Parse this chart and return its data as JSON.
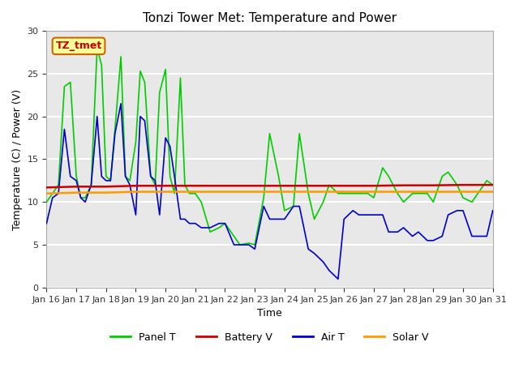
{
  "title": "Tonzi Tower Met: Temperature and Power",
  "xlabel": "Time",
  "ylabel": "Temperature (C) / Power (V)",
  "xlim": [
    0,
    15
  ],
  "ylim": [
    0,
    30
  ],
  "yticks": [
    0,
    5,
    10,
    15,
    20,
    25,
    30
  ],
  "xtick_labels": [
    "Jan 16",
    "Jan 17",
    "Jan 18",
    "Jan 19",
    "Jan 20",
    "Jan 21",
    "Jan 22",
    "Jan 23",
    "Jan 24",
    "Jan 25",
    "Jan 26",
    "Jan 27",
    "Jan 28",
    "Jan 29",
    "Jan 30",
    "Jan 31"
  ],
  "annotation_text": "TZ_tmet",
  "annotation_color": "#cc0000",
  "annotation_bg": "#ffff99",
  "bg_color": "#e8e8e8",
  "grid_color": "#ffffff",
  "legend_entries": [
    "Panel T",
    "Battery V",
    "Air T",
    "Solar V"
  ],
  "line_colors": {
    "panel_t": "#00cc00",
    "battery_v": "#cc0000",
    "air_t": "#0000cc",
    "solar_v": "#ff9900"
  },
  "panel_t_x": [
    0,
    0.2,
    0.4,
    0.6,
    0.8,
    1.0,
    1.15,
    1.3,
    1.5,
    1.7,
    1.85,
    2.0,
    2.15,
    2.3,
    2.5,
    2.65,
    2.8,
    3.0,
    3.15,
    3.3,
    3.5,
    3.65,
    3.8,
    4.0,
    4.15,
    4.3,
    4.5,
    4.65,
    4.8,
    5.0,
    5.2,
    5.5,
    5.8,
    6.0,
    6.3,
    6.5,
    6.8,
    7.0,
    7.3,
    7.5,
    7.8,
    8.0,
    8.3,
    8.5,
    8.8,
    9.0,
    9.3,
    9.5,
    9.8,
    10.0,
    10.3,
    10.5,
    10.8,
    11.0,
    11.3,
    11.5,
    11.8,
    12.0,
    12.3,
    12.5,
    12.8,
    13.0,
    13.3,
    13.5,
    13.8,
    14.0,
    14.3,
    14.5,
    14.8,
    15.0
  ],
  "panel_t_y": [
    10,
    11,
    12,
    23.5,
    24,
    13,
    10.5,
    10.5,
    12,
    28,
    26,
    13,
    12.5,
    18.5,
    27,
    13,
    12.5,
    17,
    25.3,
    24,
    13,
    12,
    22.8,
    25.5,
    13,
    11,
    24.5,
    12,
    11,
    11,
    10,
    6.5,
    7,
    7.5,
    6,
    5,
    5.2,
    5,
    10.5,
    18,
    13,
    9,
    9.5,
    18,
    11,
    8,
    10,
    12,
    11,
    11,
    11,
    11,
    11,
    10.5,
    14,
    13,
    11,
    10,
    11,
    11,
    11,
    10,
    13,
    13.5,
    12,
    10.5,
    10,
    11,
    12.5,
    12
  ],
  "battery_v_x": [
    0,
    1,
    2,
    3,
    4,
    5,
    6,
    7,
    8,
    9,
    10,
    11,
    12,
    13,
    14,
    15
  ],
  "battery_v_y": [
    11.7,
    11.8,
    11.8,
    11.9,
    11.9,
    11.9,
    11.9,
    11.9,
    11.9,
    11.9,
    11.9,
    11.9,
    11.95,
    11.95,
    12.0,
    12.0
  ],
  "air_t_x": [
    0,
    0.2,
    0.4,
    0.6,
    0.8,
    1.0,
    1.15,
    1.3,
    1.5,
    1.7,
    1.85,
    2.0,
    2.15,
    2.3,
    2.5,
    2.65,
    2.8,
    3.0,
    3.15,
    3.3,
    3.5,
    3.65,
    3.8,
    4.0,
    4.15,
    4.3,
    4.5,
    4.65,
    4.8,
    5.0,
    5.2,
    5.5,
    5.8,
    6.0,
    6.3,
    6.5,
    6.8,
    7.0,
    7.3,
    7.5,
    7.8,
    8.0,
    8.3,
    8.5,
    8.8,
    9.0,
    9.3,
    9.5,
    9.8,
    10.0,
    10.3,
    10.5,
    10.8,
    11.0,
    11.3,
    11.5,
    11.8,
    12.0,
    12.3,
    12.5,
    12.8,
    13.0,
    13.3,
    13.5,
    13.8,
    14.0,
    14.3,
    14.5,
    14.8,
    15.0
  ],
  "air_t_y": [
    7.5,
    10.5,
    11,
    18.5,
    13,
    12.5,
    10.5,
    10,
    12,
    20,
    13,
    12.5,
    12.5,
    18,
    21.5,
    13,
    12,
    8.5,
    20,
    19.5,
    13,
    12.5,
    8.5,
    17.5,
    16.5,
    13,
    8,
    8,
    7.5,
    7.5,
    7,
    7,
    7.5,
    7.5,
    5,
    5,
    5,
    4.5,
    9.5,
    8,
    8,
    8,
    9.5,
    9.5,
    4.5,
    4,
    3,
    2,
    1,
    8,
    9,
    8.5,
    8.5,
    8.5,
    8.5,
    6.5,
    6.5,
    7,
    6,
    6.5,
    5.5,
    5.5,
    6,
    8.5,
    9,
    9,
    6,
    6,
    6,
    9
  ],
  "solar_v_x": [
    0,
    1,
    2,
    3,
    4,
    5,
    6,
    7,
    8,
    9,
    10,
    11,
    12,
    13,
    14,
    15
  ],
  "solar_v_y": [
    11.0,
    11.1,
    11.1,
    11.2,
    11.2,
    11.2,
    11.2,
    11.2,
    11.2,
    11.2,
    11.2,
    11.2,
    11.2,
    11.2,
    11.2,
    11.2
  ]
}
